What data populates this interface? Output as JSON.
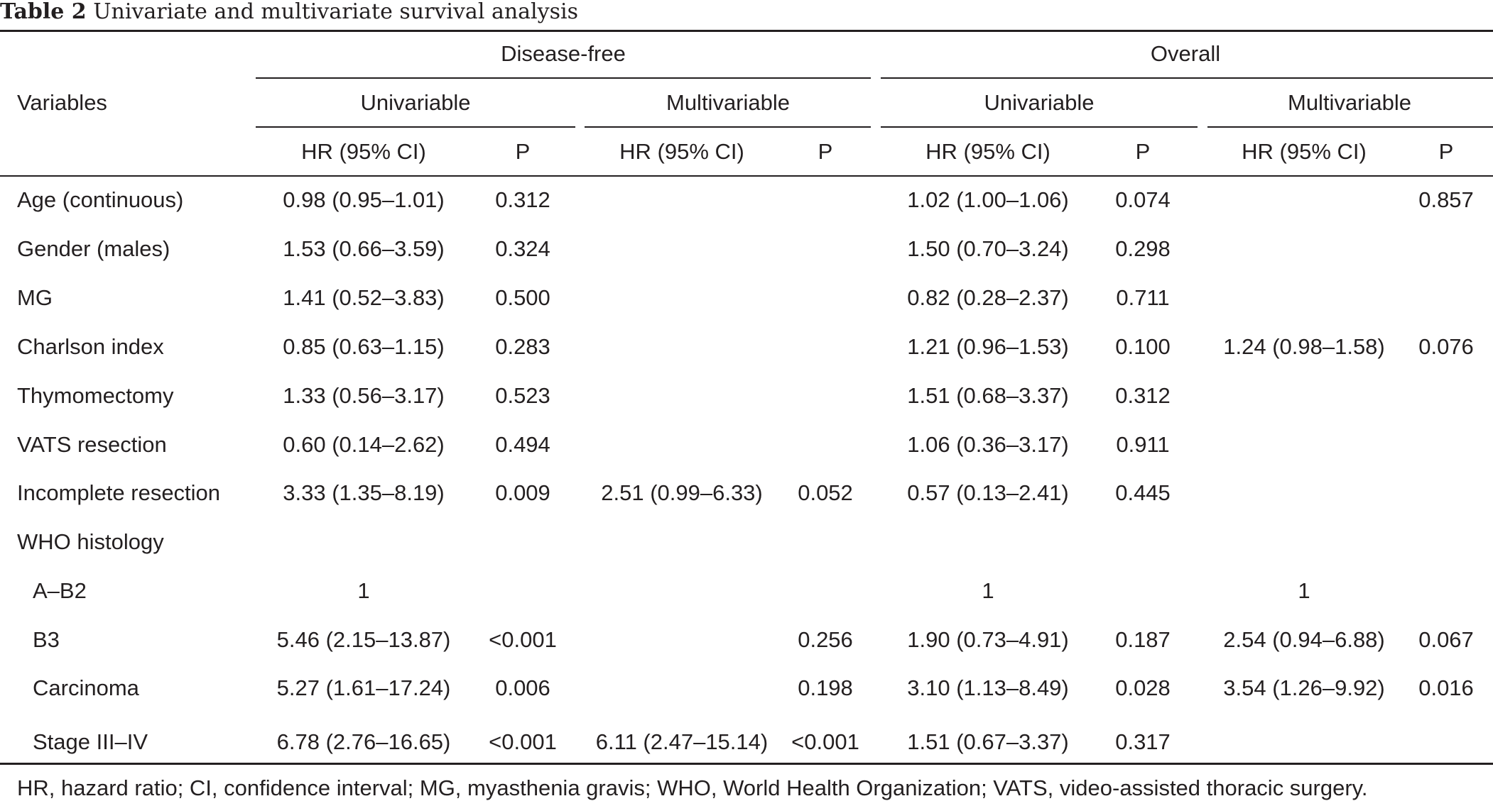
{
  "caption": {
    "label": "Table 2",
    "title": "Univariate and multivariate survival analysis"
  },
  "header": {
    "variables": "Variables",
    "groups": [
      "Disease-free",
      "Overall"
    ],
    "subgroups": [
      "Univariable",
      "Multivariable",
      "Univariable",
      "Multivariable"
    ],
    "hr_label": "HR (95% CI)",
    "p_label": "P"
  },
  "rows": [
    {
      "label": "Age (continuous)",
      "indent": false,
      "cells": [
        "0.98 (0.95–1.01)",
        "0.312",
        "",
        "",
        "1.02 (1.00–1.06)",
        "0.074",
        "",
        "0.857"
      ]
    },
    {
      "label": "Gender (males)",
      "indent": false,
      "cells": [
        "1.53 (0.66–3.59)",
        "0.324",
        "",
        "",
        "1.50 (0.70–3.24)",
        "0.298",
        "",
        ""
      ]
    },
    {
      "label": "MG",
      "indent": false,
      "cells": [
        "1.41 (0.52–3.83)",
        "0.500",
        "",
        "",
        "0.82 (0.28–2.37)",
        "0.711",
        "",
        ""
      ]
    },
    {
      "label": "Charlson index",
      "indent": false,
      "cells": [
        "0.85 (0.63–1.15)",
        "0.283",
        "",
        "",
        "1.21 (0.96–1.53)",
        "0.100",
        "1.24 (0.98–1.58)",
        "0.076"
      ]
    },
    {
      "label": "Thymomectomy",
      "indent": false,
      "cells": [
        "1.33 (0.56–3.17)",
        "0.523",
        "",
        "",
        "1.51 (0.68–3.37)",
        "0.312",
        "",
        ""
      ]
    },
    {
      "label": "VATS resection",
      "indent": false,
      "cells": [
        "0.60 (0.14–2.62)",
        "0.494",
        "",
        "",
        "1.06 (0.36–3.17)",
        "0.911",
        "",
        ""
      ]
    },
    {
      "label": "Incomplete resection",
      "indent": false,
      "cells": [
        "3.33 (1.35–8.19)",
        "0.009",
        "2.51 (0.99–6.33)",
        "0.052",
        "0.57 (0.13–2.41)",
        "0.445",
        "",
        ""
      ]
    },
    {
      "label": "WHO histology",
      "indent": false,
      "cells": [
        "",
        "",
        "",
        "",
        "",
        "",
        "",
        ""
      ]
    },
    {
      "label": "A–B2",
      "indent": true,
      "cells": [
        "1",
        "",
        "",
        "",
        "1",
        "",
        "1",
        ""
      ]
    },
    {
      "label": "B3",
      "indent": true,
      "cells": [
        "5.46 (2.15–13.87)",
        "<0.001",
        "",
        "0.256",
        "1.90 (0.73–4.91)",
        "0.187",
        "2.54 (0.94–6.88)",
        "0.067"
      ]
    },
    {
      "label": "Carcinoma",
      "indent": true,
      "cells": [
        "5.27 (1.61–17.24)",
        "0.006",
        "",
        "0.198",
        "3.10 (1.13–8.49)",
        "0.028",
        "3.54 (1.26–9.92)",
        "0.016"
      ]
    },
    {
      "label": "Stage III–IV",
      "indent": true,
      "cells": [
        "6.78 (2.76–16.65)",
        "<0.001",
        "6.11 (2.47–15.14)",
        "<0.001",
        "1.51 (0.67–3.37)",
        "0.317",
        "",
        ""
      ]
    }
  ],
  "footnote": "HR, hazard ratio; CI, confidence interval; MG, myasthenia gravis; WHO, World Health Organization; VATS, video-assisted thoracic surgery."
}
